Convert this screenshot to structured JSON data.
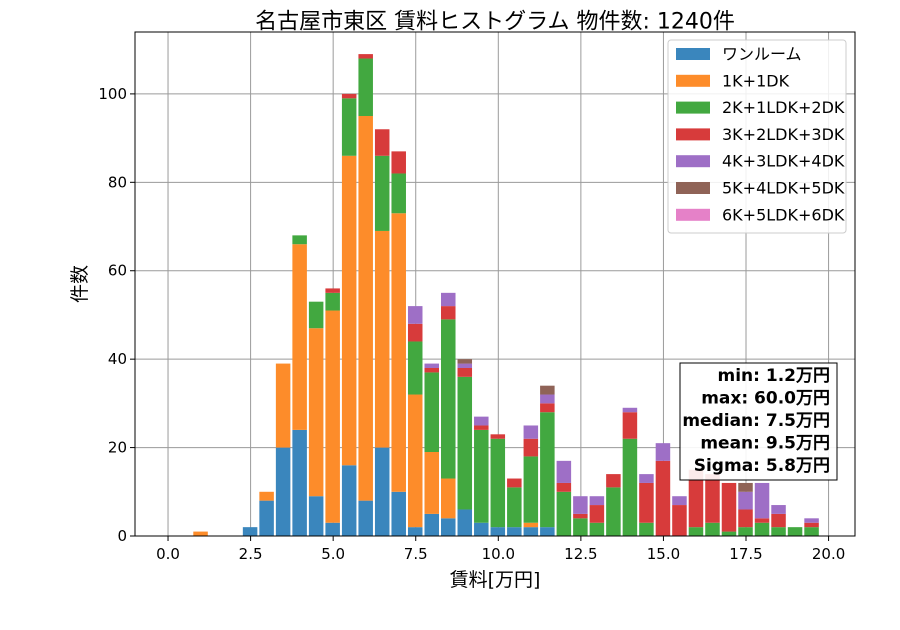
{
  "chart_data": {
    "type": "bar",
    "stacked": true,
    "title": "名古屋市東区 賃料ヒストグラム 物件数: 1240件",
    "xlabel": "賃料[万円]",
    "ylabel": "件数",
    "xlim": [
      -1.0,
      20.8
    ],
    "ylim": [
      0,
      114
    ],
    "xticks": [
      0.0,
      2.5,
      5.0,
      7.5,
      10.0,
      12.5,
      15.0,
      17.5,
      20.0
    ],
    "xtick_labels": [
      "0.0",
      "2.5",
      "5.0",
      "7.5",
      "10.0",
      "12.5",
      "15.0",
      "17.5",
      "20.0"
    ],
    "yticks": [
      0,
      20,
      40,
      60,
      80,
      100
    ],
    "ytick_labels": [
      "0",
      "20",
      "40",
      "60",
      "80",
      "100"
    ],
    "grid": true,
    "legend_position": "top-right",
    "bin_width": 0.5,
    "x": [
      0.5,
      1.0,
      1.5,
      2.0,
      2.5,
      3.0,
      3.5,
      4.0,
      4.5,
      5.0,
      5.5,
      6.0,
      6.5,
      7.0,
      7.5,
      8.0,
      8.5,
      9.0,
      9.5,
      10.0,
      10.5,
      11.0,
      11.5,
      12.0,
      12.5,
      13.0,
      13.5,
      14.0,
      14.5,
      15.0,
      15.5,
      16.0,
      16.5,
      17.0,
      17.5,
      18.0,
      18.5,
      19.0,
      19.5
    ],
    "series": [
      {
        "name": "ワンルーム",
        "color": "#3a86bd",
        "values": [
          0,
          0,
          0,
          0,
          2,
          8,
          20,
          24,
          9,
          3,
          16,
          8,
          20,
          10,
          2,
          5,
          4,
          6,
          3,
          2,
          2,
          2,
          2,
          0,
          0,
          0,
          0,
          0,
          0,
          0,
          0,
          0,
          0,
          0,
          0,
          0,
          0,
          0,
          0
        ]
      },
      {
        "name": "1K+1DK",
        "color": "#fd8c2a",
        "values": [
          0,
          1,
          0,
          0,
          0,
          2,
          19,
          42,
          38,
          48,
          70,
          87,
          49,
          63,
          30,
          14,
          9,
          0,
          0,
          0,
          0,
          1,
          0,
          0,
          0,
          0,
          0,
          0,
          0,
          0,
          0,
          0,
          0,
          0,
          0,
          0,
          0,
          0,
          0
        ]
      },
      {
        "name": "2K+1LDK+2DK",
        "color": "#42a840",
        "values": [
          0,
          0,
          0,
          0,
          0,
          0,
          0,
          2,
          6,
          4,
          13,
          13,
          17,
          9,
          12,
          18,
          36,
          30,
          21,
          20,
          9,
          15,
          26,
          10,
          4,
          3,
          11,
          22,
          3,
          0,
          0,
          2,
          3,
          1,
          2,
          3,
          2,
          2,
          2
        ]
      },
      {
        "name": "3K+2LDK+3DK",
        "color": "#d73b3b",
        "values": [
          0,
          0,
          0,
          0,
          0,
          0,
          0,
          0,
          0,
          1,
          1,
          1,
          6,
          5,
          4,
          1,
          3,
          2,
          1,
          1,
          2,
          4,
          2,
          2,
          1,
          4,
          3,
          6,
          9,
          17,
          7,
          13,
          11,
          11,
          4,
          1,
          3,
          0,
          1
        ]
      },
      {
        "name": "4K+3LDK+4DK",
        "color": "#9e6fc6",
        "values": [
          0,
          0,
          0,
          0,
          0,
          0,
          0,
          0,
          0,
          0,
          0,
          0,
          0,
          0,
          4,
          1,
          3,
          1,
          2,
          0,
          0,
          3,
          2,
          5,
          4,
          2,
          0,
          1,
          2,
          4,
          2,
          0,
          0,
          0,
          4,
          8,
          2,
          0,
          1
        ]
      },
      {
        "name": "5K+4LDK+5DK",
        "color": "#8f6357",
        "values": [
          0,
          0,
          0,
          0,
          0,
          0,
          0,
          0,
          0,
          0,
          0,
          0,
          0,
          0,
          0,
          0,
          0,
          1,
          0,
          0,
          0,
          0,
          2,
          0,
          0,
          0,
          0,
          0,
          0,
          0,
          0,
          0,
          0,
          0,
          2,
          0,
          0,
          0,
          0
        ]
      },
      {
        "name": "6K+5LDK+6DK",
        "color": "#e581c8",
        "values": [
          0,
          0,
          0,
          0,
          0,
          0,
          0,
          0,
          0,
          0,
          0,
          0,
          0,
          0,
          0,
          0,
          0,
          0,
          0,
          0,
          0,
          0,
          0,
          0,
          0,
          0,
          0,
          0,
          0,
          0,
          0,
          0,
          0,
          0,
          0,
          0,
          0,
          0,
          0
        ]
      }
    ],
    "stats": [
      "min: 1.2万円",
      "max: 60.0万円",
      "median: 7.5万円",
      "mean: 9.5万円",
      "Sigma: 5.8万円"
    ]
  }
}
